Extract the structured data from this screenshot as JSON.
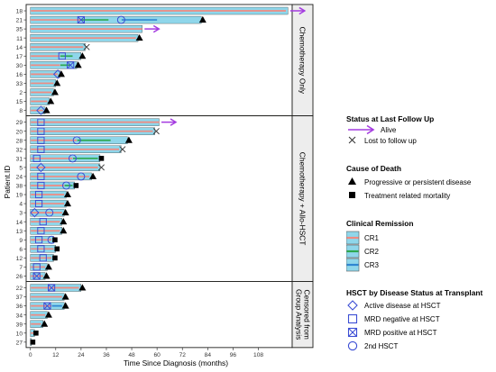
{
  "chart_data": {
    "type": "swimmer",
    "xlabel": "Time Since Diagnosis (months)",
    "ylabel": "Patient.ID",
    "xlim": [
      -2,
      124
    ],
    "x_ticks": [
      0,
      12,
      24,
      36,
      48,
      60,
      72,
      84,
      96,
      108
    ],
    "colors": {
      "bar": "#8fd6ea",
      "bar_edge": "#1d1d1b",
      "cr1": "#f08a80",
      "cr2": "#2ea84e",
      "cr3": "#2f86d1",
      "alive_arrow": "#a43be0",
      "hsct_marker": "#3b4dd4",
      "panel_strip": "#ededed"
    },
    "panels": [
      {
        "label": "Chemotherapy Only",
        "patients": [
          {
            "id": "18",
            "time": 122,
            "status": "alive",
            "remission": [
              {
                "type": "CR1",
                "start": 0,
                "end": 121
              }
            ]
          },
          {
            "id": "21",
            "time": 81,
            "status": "progressive",
            "remission": [
              {
                "type": "CR1",
                "start": 0,
                "end": 24
              },
              {
                "type": "CR2",
                "start": 24,
                "end": 37
              },
              {
                "type": "CR3",
                "start": 43,
                "end": 60
              }
            ],
            "hsct": [
              {
                "type": "mrd_pos",
                "time": 24
              },
              {
                "type": "2nd",
                "time": 43
              }
            ]
          },
          {
            "id": "35",
            "time": 53,
            "status": "alive",
            "remission": [
              {
                "type": "CR1",
                "start": 0,
                "end": 53
              }
            ]
          },
          {
            "id": "11",
            "time": 51,
            "status": "progressive",
            "remission": [
              {
                "type": "CR1",
                "start": 0,
                "end": 50
              }
            ]
          },
          {
            "id": "14",
            "time": 26,
            "status": "lost",
            "remission": [
              {
                "type": "CR1",
                "start": 0,
                "end": 25
              }
            ]
          },
          {
            "id": "17",
            "time": 24,
            "status": "progressive",
            "remission": [
              {
                "type": "CR1",
                "start": 0,
                "end": 14
              },
              {
                "type": "CR2",
                "start": 14,
                "end": 20
              }
            ],
            "hsct": [
              {
                "type": "mrd_neg",
                "time": 15
              }
            ]
          },
          {
            "id": "30",
            "time": 22,
            "status": "progressive",
            "remission": [
              {
                "type": "CR1",
                "start": 0,
                "end": 14
              },
              {
                "type": "CR2",
                "start": 14,
                "end": 19
              }
            ],
            "hsct": [
              {
                "type": "mrd_pos",
                "time": 19
              }
            ]
          },
          {
            "id": "16",
            "time": 14,
            "status": "progressive",
            "remission": [
              {
                "type": "CR1",
                "start": 0,
                "end": 13
              }
            ],
            "hsct": [
              {
                "type": "active",
                "time": 13
              }
            ]
          },
          {
            "id": "33",
            "time": 12,
            "status": "progressive",
            "remission": [
              {
                "type": "CR1",
                "start": 0,
                "end": 11
              }
            ]
          },
          {
            "id": "2",
            "time": 11,
            "status": "progressive",
            "remission": [
              {
                "type": "CR1",
                "start": 0,
                "end": 10
              }
            ]
          },
          {
            "id": "15",
            "time": 9,
            "status": "progressive",
            "remission": [
              {
                "type": "CR1",
                "start": 0,
                "end": 8
              }
            ]
          },
          {
            "id": "8",
            "time": 7,
            "status": "progressive",
            "remission": [
              {
                "type": "CR1",
                "start": 0,
                "end": 6
              }
            ],
            "hsct": [
              {
                "type": "active",
                "time": 5
              }
            ]
          }
        ]
      },
      {
        "label": "Chemotherapy + Allo-HSCT",
        "patients": [
          {
            "id": "29",
            "time": 61,
            "status": "alive",
            "remission": [
              {
                "type": "CR1",
                "start": 0,
                "end": 61
              }
            ],
            "hsct": [
              {
                "type": "mrd_neg",
                "time": 5
              }
            ]
          },
          {
            "id": "20",
            "time": 59,
            "status": "lost",
            "remission": [
              {
                "type": "CR1",
                "start": 0,
                "end": 58
              }
            ],
            "hsct": [
              {
                "type": "mrd_neg",
                "time": 5
              }
            ]
          },
          {
            "id": "28",
            "time": 46,
            "status": "progressive",
            "remission": [
              {
                "type": "CR1",
                "start": 0,
                "end": 22
              },
              {
                "type": "CR2",
                "start": 22,
                "end": 38
              }
            ],
            "hsct": [
              {
                "type": "mrd_neg",
                "time": 5
              },
              {
                "type": "2nd",
                "time": 22
              }
            ]
          },
          {
            "id": "32",
            "time": 43,
            "status": "lost",
            "remission": [
              {
                "type": "CR1",
                "start": 0,
                "end": 42
              }
            ],
            "hsct": [
              {
                "type": "mrd_neg",
                "time": 5
              }
            ]
          },
          {
            "id": "31",
            "time": 33,
            "status": "treatment",
            "remission": [
              {
                "type": "CR1",
                "start": 0,
                "end": 20
              },
              {
                "type": "CR2",
                "start": 20,
                "end": 32
              }
            ],
            "hsct": [
              {
                "type": "mrd_neg",
                "time": 3
              },
              {
                "type": "2nd",
                "time": 20
              }
            ]
          },
          {
            "id": "5",
            "time": 33,
            "status": "lost",
            "remission": [
              {
                "type": "CR1",
                "start": 0,
                "end": 32
              }
            ],
            "hsct": [
              {
                "type": "active",
                "time": 5
              }
            ]
          },
          {
            "id": "24",
            "time": 29,
            "status": "progressive",
            "remission": [
              {
                "type": "CR1",
                "start": 0,
                "end": 28
              }
            ],
            "hsct": [
              {
                "type": "mrd_neg",
                "time": 5
              },
              {
                "type": "2nd",
                "time": 24
              }
            ]
          },
          {
            "id": "38",
            "time": 21,
            "status": "treatment",
            "remission": [
              {
                "type": "CR1",
                "start": 0,
                "end": 16
              },
              {
                "type": "CR2",
                "start": 16,
                "end": 20
              }
            ],
            "hsct": [
              {
                "type": "mrd_neg",
                "time": 5
              },
              {
                "type": "2nd",
                "time": 17
              }
            ]
          },
          {
            "id": "19",
            "time": 17,
            "status": "progressive",
            "remission": [
              {
                "type": "CR1",
                "start": 0,
                "end": 16
              }
            ],
            "hsct": [
              {
                "type": "mrd_neg",
                "time": 4
              }
            ]
          },
          {
            "id": "4",
            "time": 17,
            "status": "progressive",
            "remission": [
              {
                "type": "CR1",
                "start": 0,
                "end": 16
              }
            ],
            "hsct": [
              {
                "type": "mrd_neg",
                "time": 4
              }
            ]
          },
          {
            "id": "3",
            "time": 16,
            "status": "progressive",
            "remission": [
              {
                "type": "CR1",
                "start": 0,
                "end": 15
              }
            ],
            "hsct": [
              {
                "type": "active",
                "time": 2
              },
              {
                "type": "2nd",
                "time": 9
              }
            ]
          },
          {
            "id": "14",
            "time": 15,
            "status": "progressive",
            "remission": [
              {
                "type": "CR1",
                "start": 0,
                "end": 14
              }
            ],
            "hsct": [
              {
                "type": "mrd_neg",
                "time": 6
              }
            ]
          },
          {
            "id": "13",
            "time": 15,
            "status": "progressive",
            "remission": [
              {
                "type": "CR1",
                "start": 0,
                "end": 14
              }
            ],
            "hsct": [
              {
                "type": "mrd_neg",
                "time": 5
              }
            ]
          },
          {
            "id": "9",
            "time": 11,
            "status": "treatment",
            "remission": [
              {
                "type": "CR1",
                "start": 0,
                "end": 10
              }
            ],
            "hsct": [
              {
                "type": "mrd_neg",
                "time": 4
              },
              {
                "type": "2nd",
                "time": 10
              }
            ]
          },
          {
            "id": "6",
            "time": 12,
            "status": "treatment",
            "remission": [
              {
                "type": "CR1",
                "start": 0,
                "end": 11
              }
            ],
            "hsct": [
              {
                "type": "mrd_neg",
                "time": 5
              }
            ]
          },
          {
            "id": "12",
            "time": 11,
            "status": "treatment",
            "remission": [
              {
                "type": "CR1",
                "start": 0,
                "end": 10
              }
            ],
            "hsct": [
              {
                "type": "mrd_neg",
                "time": 6
              }
            ]
          },
          {
            "id": "7",
            "time": 8,
            "status": "progressive",
            "remission": [
              {
                "type": "CR1",
                "start": 0,
                "end": 7
              }
            ],
            "hsct": [
              {
                "type": "mrd_neg",
                "time": 3
              }
            ]
          },
          {
            "id": "26",
            "time": 7,
            "status": "progressive",
            "remission": [
              {
                "type": "CR1",
                "start": 0,
                "end": 6
              }
            ],
            "hsct": [
              {
                "type": "mrd_pos",
                "time": 3
              }
            ]
          }
        ]
      },
      {
        "label": "Censored from Group Analysis",
        "patients": [
          {
            "id": "22",
            "time": 24,
            "status": "progressive",
            "remission": [
              {
                "type": "CR1",
                "start": 0,
                "end": 23
              }
            ],
            "hsct": [
              {
                "type": "mrd_pos",
                "time": 10
              }
            ]
          },
          {
            "id": "37",
            "time": 16,
            "status": "progressive",
            "remission": [
              {
                "type": "CR1",
                "start": 0,
                "end": 15
              }
            ]
          },
          {
            "id": "36",
            "time": 16,
            "status": "progressive",
            "remission": [
              {
                "type": "CR1",
                "start": 0,
                "end": 10
              },
              {
                "type": "CR3",
                "start": 10,
                "end": 15
              }
            ],
            "hsct": [
              {
                "type": "mrd_pos",
                "time": 8
              }
            ]
          },
          {
            "id": "34",
            "time": 8,
            "status": "progressive",
            "remission": [
              {
                "type": "CR1",
                "start": 0,
                "end": 7
              }
            ]
          },
          {
            "id": "39",
            "time": 6,
            "status": "progressive",
            "remission": [
              {
                "type": "CR1",
                "start": 0,
                "end": 5
              }
            ]
          },
          {
            "id": "10",
            "time": 2,
            "status": "treatment",
            "remission": [
              {
                "type": "CR1",
                "start": 0,
                "end": 1.5
              }
            ]
          },
          {
            "id": "27",
            "time": 0.5,
            "status": "treatment",
            "remission": []
          }
        ]
      }
    ]
  },
  "legend": {
    "status": {
      "title": "Status at Last Follow Up",
      "alive": "Alive",
      "lost": "Lost to follow up"
    },
    "death": {
      "title": "Cause of Death",
      "progressive": "Progressive or persistent disease",
      "treatment": "Treatment related mortality"
    },
    "remission": {
      "title": "Clinical Remission",
      "cr1": "CR1",
      "cr2": "CR2",
      "cr3": "CR3"
    },
    "hsct": {
      "title": "HSCT by Disease Status at Transplant",
      "active": "Active disease at HSCT",
      "mrd_neg": "MRD negative at HSCT",
      "mrd_pos": "MRD positive at HSCT",
      "second": "2nd HSCT"
    }
  }
}
